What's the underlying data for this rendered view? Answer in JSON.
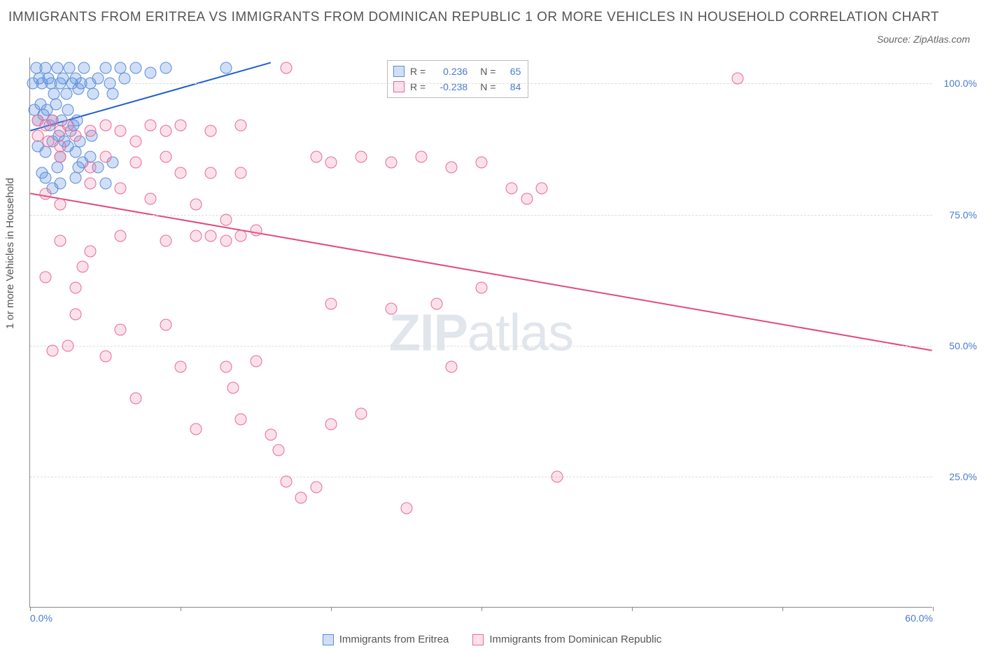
{
  "title": "IMMIGRANTS FROM ERITREA VS IMMIGRANTS FROM DOMINICAN REPUBLIC 1 OR MORE VEHICLES IN HOUSEHOLD CORRELATION CHART",
  "source": "Source: ZipAtlas.com",
  "y_axis_label": "1 or more Vehicles in Household",
  "watermark_bold": "ZIP",
  "watermark_light": "atlas",
  "chart": {
    "type": "scatter",
    "background_color": "#ffffff",
    "grid_color": "#dddddd",
    "axis_color": "#888888",
    "label_color": "#4a7bd0",
    "xlim": [
      0,
      60
    ],
    "ylim": [
      0,
      105
    ],
    "y_ticks": [
      {
        "v": 25,
        "label": "25.0%"
      },
      {
        "v": 50,
        "label": "50.0%"
      },
      {
        "v": 75,
        "label": "75.0%"
      },
      {
        "v": 100,
        "label": "100.0%"
      }
    ],
    "x_ticks": [
      {
        "v": 0,
        "label": "0.0%"
      },
      {
        "v": 10,
        "label": ""
      },
      {
        "v": 20,
        "label": ""
      },
      {
        "v": 30,
        "label": ""
      },
      {
        "v": 40,
        "label": ""
      },
      {
        "v": 50,
        "label": ""
      },
      {
        "v": 60,
        "label": "60.0%"
      }
    ],
    "marker_radius": 8.5,
    "marker_opacity": 0.35,
    "line_width": 2
  },
  "series": [
    {
      "name": "Immigrants from Eritrea",
      "color_fill": "rgba(100,150,230,0.30)",
      "color_stroke": "#5a8dd6",
      "line_color": "#1e5cd4",
      "R": "0.236",
      "N": "65",
      "trend": {
        "x1": 0,
        "y1": 91,
        "x2": 16,
        "y2": 104
      },
      "points": [
        [
          0.2,
          100
        ],
        [
          0.4,
          103
        ],
        [
          0.6,
          101
        ],
        [
          0.8,
          100
        ],
        [
          1.0,
          103
        ],
        [
          1.2,
          101
        ],
        [
          1.4,
          100
        ],
        [
          1.6,
          98
        ],
        [
          1.8,
          103
        ],
        [
          2.0,
          100
        ],
        [
          2.2,
          101
        ],
        [
          2.4,
          98
        ],
        [
          2.6,
          103
        ],
        [
          2.8,
          100
        ],
        [
          3.0,
          101
        ],
        [
          3.2,
          99
        ],
        [
          3.4,
          100
        ],
        [
          3.6,
          103
        ],
        [
          4.0,
          100
        ],
        [
          4.2,
          98
        ],
        [
          4.5,
          101
        ],
        [
          5.0,
          103
        ],
        [
          5.3,
          100
        ],
        [
          5.5,
          98
        ],
        [
          6.0,
          103
        ],
        [
          6.3,
          101
        ],
        [
          7.0,
          103
        ],
        [
          8.0,
          102
        ],
        [
          9.0,
          103
        ],
        [
          13.0,
          103
        ],
        [
          0.3,
          95
        ],
        [
          0.5,
          93
        ],
        [
          0.7,
          96
        ],
        [
          0.9,
          94
        ],
        [
          1.1,
          95
        ],
        [
          1.3,
          92
        ],
        [
          1.5,
          93
        ],
        [
          1.7,
          96
        ],
        [
          1.9,
          90
        ],
        [
          2.1,
          93
        ],
        [
          2.3,
          89
        ],
        [
          2.5,
          95
        ],
        [
          2.7,
          91
        ],
        [
          2.9,
          92
        ],
        [
          3.1,
          93
        ],
        [
          3.3,
          89
        ],
        [
          4.1,
          90
        ],
        [
          0.5,
          88
        ],
        [
          1.0,
          87
        ],
        [
          1.5,
          89
        ],
        [
          2.0,
          86
        ],
        [
          2.5,
          88
        ],
        [
          3.0,
          87
        ],
        [
          3.5,
          85
        ],
        [
          4.0,
          86
        ],
        [
          0.8,
          83
        ],
        [
          1.8,
          84
        ],
        [
          3.2,
          84
        ],
        [
          4.5,
          84
        ],
        [
          5.5,
          85
        ],
        [
          1.0,
          82
        ],
        [
          2.0,
          81
        ],
        [
          3.0,
          82
        ],
        [
          1.5,
          80
        ],
        [
          5.0,
          81
        ]
      ]
    },
    {
      "name": "Immigrants from Dominican Republic",
      "color_fill": "rgba(240,120,160,0.22)",
      "color_stroke": "#e66a99",
      "line_color": "#e24a7e",
      "R": "-0.238",
      "N": "84",
      "trend": {
        "x1": 0,
        "y1": 79,
        "x2": 60,
        "y2": 49
      },
      "points": [
        [
          0.5,
          93
        ],
        [
          1.0,
          92
        ],
        [
          1.5,
          93
        ],
        [
          2.0,
          91
        ],
        [
          2.5,
          92
        ],
        [
          0.5,
          90
        ],
        [
          1.2,
          89
        ],
        [
          2.0,
          88
        ],
        [
          3.0,
          90
        ],
        [
          4.0,
          91
        ],
        [
          5.0,
          92
        ],
        [
          6.0,
          91
        ],
        [
          7.0,
          89
        ],
        [
          8.0,
          92
        ],
        [
          9.0,
          91
        ],
        [
          10.0,
          92
        ],
        [
          12.0,
          91
        ],
        [
          14.0,
          92
        ],
        [
          17.0,
          103
        ],
        [
          47.0,
          101
        ],
        [
          2.0,
          86
        ],
        [
          4.0,
          84
        ],
        [
          5.0,
          86
        ],
        [
          7.0,
          85
        ],
        [
          9.0,
          86
        ],
        [
          10.0,
          83
        ],
        [
          12.0,
          83
        ],
        [
          14.0,
          83
        ],
        [
          19.0,
          86
        ],
        [
          20.0,
          85
        ],
        [
          22.0,
          86
        ],
        [
          24.0,
          85
        ],
        [
          26.0,
          86
        ],
        [
          28.0,
          84
        ],
        [
          30.0,
          85
        ],
        [
          32.0,
          80
        ],
        [
          34.0,
          80
        ],
        [
          1.0,
          79
        ],
        [
          2.0,
          77
        ],
        [
          4.0,
          81
        ],
        [
          6.0,
          80
        ],
        [
          8.0,
          78
        ],
        [
          11.0,
          77
        ],
        [
          13.0,
          74
        ],
        [
          15.0,
          72
        ],
        [
          2.0,
          70
        ],
        [
          4.0,
          68
        ],
        [
          6.0,
          71
        ],
        [
          9.0,
          70
        ],
        [
          11.0,
          71
        ],
        [
          1.0,
          63
        ],
        [
          3.0,
          61
        ],
        [
          12.0,
          71
        ],
        [
          13.0,
          70
        ],
        [
          14.0,
          71
        ],
        [
          3.0,
          56
        ],
        [
          6.0,
          53
        ],
        [
          9.0,
          54
        ],
        [
          1.5,
          49
        ],
        [
          13.0,
          46
        ],
        [
          15.0,
          47
        ],
        [
          13.5,
          42
        ],
        [
          20.0,
          58
        ],
        [
          24.0,
          57
        ],
        [
          28.0,
          46
        ],
        [
          30.0,
          61
        ],
        [
          33.0,
          78
        ],
        [
          35.0,
          25
        ],
        [
          16.0,
          33
        ],
        [
          16.5,
          30
        ],
        [
          18.0,
          21
        ],
        [
          20.0,
          35
        ],
        [
          22.0,
          37
        ],
        [
          25.0,
          19
        ],
        [
          14.0,
          36
        ],
        [
          11.0,
          34
        ],
        [
          17.0,
          24
        ],
        [
          19.0,
          23
        ],
        [
          2.5,
          50
        ],
        [
          10.0,
          46
        ],
        [
          7.0,
          40
        ],
        [
          5.0,
          48
        ],
        [
          3.5,
          65
        ],
        [
          27.0,
          58
        ]
      ]
    }
  ],
  "stats_legend": {
    "R_label": "R =",
    "N_label": "N ="
  }
}
